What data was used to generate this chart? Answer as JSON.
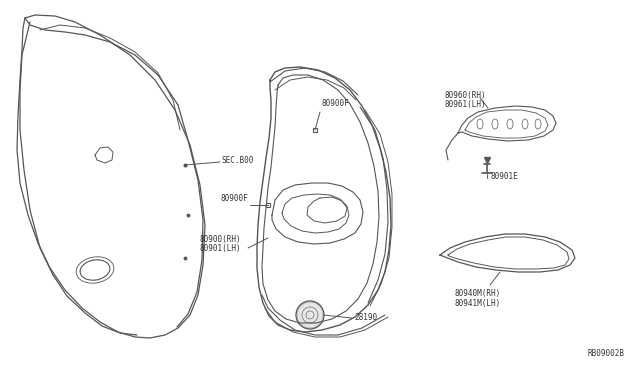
{
  "bg_color": "#ffffff",
  "line_color": "#555555",
  "text_color": "#333333",
  "fig_width": 6.4,
  "fig_height": 3.72,
  "dpi": 100,
  "labels": {
    "sec800": "SEC.B00",
    "80900F_top": "80900F",
    "80900F_mid": "80900F",
    "80900_rh": "80900(RH)",
    "80901_lh": "80901(LH)",
    "28190": "28190",
    "80960_rh": "80960(RH)",
    "80961_lh": "80961(LH)",
    "80901E": "80901E",
    "80940M_rh": "80940M(RH)",
    "80941M_lh": "80941M(LH)"
  },
  "ref_code": "RB09002B"
}
